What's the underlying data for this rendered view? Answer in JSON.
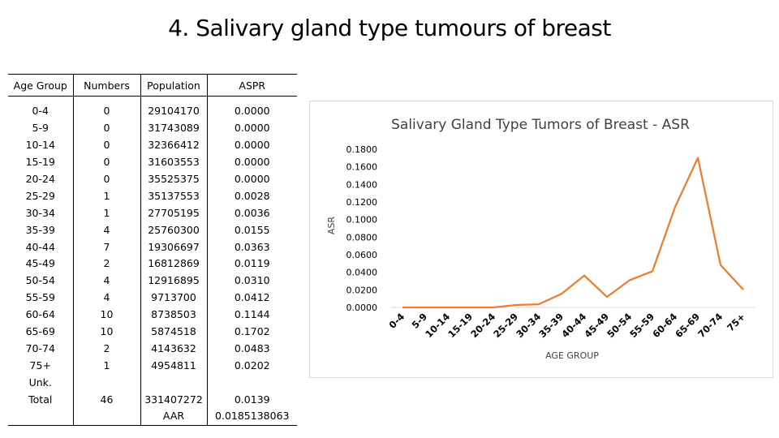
{
  "slide": {
    "title": "4. Salivary gland type tumours of breast"
  },
  "table": {
    "headers": [
      "Age Group",
      "Numbers",
      "Population",
      "ASPR"
    ],
    "rows": [
      [
        "0-4",
        "0",
        "29104170",
        "0.0000"
      ],
      [
        "5-9",
        "0",
        "31743089",
        "0.0000"
      ],
      [
        "10-14",
        "0",
        "32366412",
        "0.0000"
      ],
      [
        "15-19",
        "0",
        "31603553",
        "0.0000"
      ],
      [
        "20-24",
        "0",
        "35525375",
        "0.0000"
      ],
      [
        "25-29",
        "1",
        "35137553",
        "0.0028"
      ],
      [
        "30-34",
        "1",
        "27705195",
        "0.0036"
      ],
      [
        "35-39",
        "4",
        "25760300",
        "0.0155"
      ],
      [
        "40-44",
        "7",
        "19306697",
        "0.0363"
      ],
      [
        "45-49",
        "2",
        "16812869",
        "0.0119"
      ],
      [
        "50-54",
        "4",
        "12916895",
        "0.0310"
      ],
      [
        "55-59",
        "4",
        "9713700",
        "0.0412"
      ],
      [
        "60-64",
        "10",
        "8738503",
        "0.1144"
      ],
      [
        "65-69",
        "10",
        "5874518",
        "0.1702"
      ],
      [
        "70-74",
        "2",
        "4143632",
        "0.0483"
      ],
      [
        "75+",
        "1",
        "4954811",
        "0.0202"
      ],
      [
        "Unk.",
        "",
        "",
        ""
      ],
      [
        "Total",
        "46",
        "331407272",
        "0.0139"
      ],
      [
        "",
        "",
        "AAR",
        "0.0185138063"
      ]
    ]
  },
  "chart_data": {
    "type": "line",
    "title": "Salivary Gland Type Tumors of Breast - ASR",
    "xlabel": "AGE GROUP",
    "ylabel": "ASR",
    "categories": [
      "0-4",
      "5-9",
      "10-14",
      "15-19",
      "20-24",
      "25-29",
      "30-34",
      "35-39",
      "40-44",
      "45-49",
      "50-54",
      "55-59",
      "60-64",
      "65-69",
      "70-74",
      "75+"
    ],
    "series": [
      {
        "values": [
          0.0,
          0.0,
          0.0,
          0.0,
          0.0,
          0.0028,
          0.0036,
          0.0155,
          0.0363,
          0.0119,
          0.031,
          0.0412,
          0.1144,
          0.1702,
          0.0483,
          0.0202
        ]
      }
    ],
    "ylim": [
      0,
      0.18
    ],
    "yticks": [
      "0.0000",
      "0.0200",
      "0.0400",
      "0.0600",
      "0.0800",
      "0.1000",
      "0.1200",
      "0.1400",
      "0.1600",
      "0.1800"
    ],
    "grid": false,
    "legend": "none",
    "line_color": "#ED7D31"
  }
}
